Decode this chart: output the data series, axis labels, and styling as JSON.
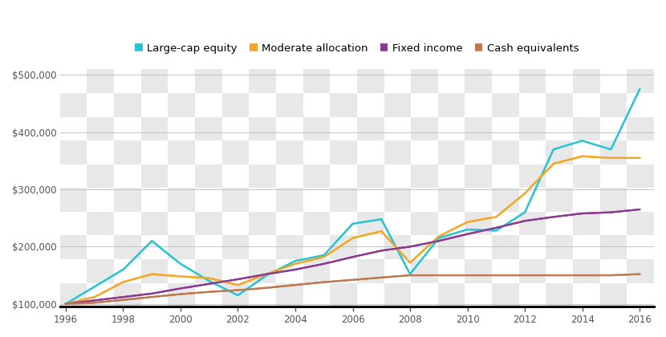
{
  "years": [
    1996,
    1997,
    1998,
    1999,
    2000,
    2001,
    2002,
    2003,
    2004,
    2005,
    2006,
    2007,
    2008,
    2009,
    2010,
    2011,
    2012,
    2013,
    2014,
    2015,
    2016
  ],
  "large_cap_equity": [
    100000,
    130000,
    160000,
    210000,
    170000,
    140000,
    115000,
    150000,
    175000,
    185000,
    240000,
    248000,
    152000,
    215000,
    230000,
    228000,
    260000,
    370000,
    385000,
    370000,
    475000
  ],
  "moderate_allocation": [
    100000,
    112000,
    138000,
    152000,
    148000,
    145000,
    133000,
    152000,
    170000,
    182000,
    215000,
    227000,
    172000,
    218000,
    243000,
    252000,
    293000,
    345000,
    358000,
    355000,
    355000
  ],
  "fixed_income": [
    100000,
    106000,
    112000,
    118000,
    127000,
    135000,
    143000,
    152000,
    160000,
    170000,
    182000,
    193000,
    200000,
    210000,
    222000,
    233000,
    245000,
    252000,
    258000,
    260000,
    265000
  ],
  "cash_equivalents": [
    100000,
    102000,
    107000,
    112000,
    117000,
    121000,
    124000,
    128000,
    133000,
    138000,
    142000,
    146000,
    150000,
    150000,
    150000,
    150000,
    150000,
    150000,
    150000,
    150000,
    152000
  ],
  "colors": {
    "large_cap_equity": "#29c5d4",
    "moderate_allocation": "#f5a623",
    "fixed_income": "#8b3a8f",
    "cash_equivalents": "#c07850"
  },
  "legend_labels": [
    "Large-cap equity",
    "Moderate allocation",
    "Fixed income",
    "Cash equivalents"
  ],
  "ylim": [
    95000,
    510000
  ],
  "yticks": [
    100000,
    200000,
    300000,
    400000,
    500000
  ],
  "ytick_labels": [
    "$100,000",
    "$200,000",
    "$300,000",
    "$400,000",
    "$500,000"
  ],
  "xlim": [
    1995.8,
    2016.5
  ],
  "xticks": [
    1996,
    1998,
    2000,
    2002,
    2004,
    2006,
    2008,
    2010,
    2012,
    2014,
    2016
  ],
  "grid_color": "#bbbbbb",
  "line_width": 1.6,
  "legend_fontsize": 9.5,
  "tick_fontsize": 8.5,
  "checker_light": "#e8e8e8",
  "checker_dark": "#ffffff",
  "checker_size": 40
}
